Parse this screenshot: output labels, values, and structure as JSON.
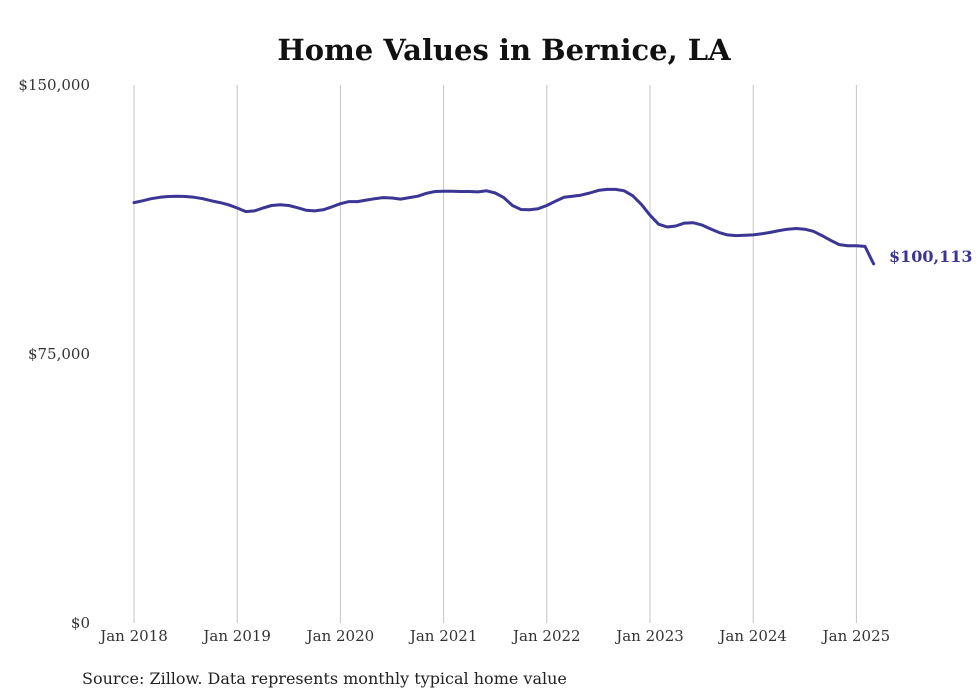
{
  "chart_data": {
    "type": "line",
    "title": "Home Values in Bernice, LA",
    "xlabel": "",
    "ylabel": "",
    "x_tick_labels": [
      "Jan 2018",
      "Jan 2019",
      "Jan 2020",
      "Jan 2021",
      "Jan 2022",
      "Jan 2023",
      "Jan 2024",
      "Jan 2025"
    ],
    "y_tick_labels": [
      "$150,000",
      "$75,000",
      "$0"
    ],
    "y_tick_values": [
      150000,
      75000,
      0
    ],
    "ylim": [
      0,
      150000
    ],
    "xlim": [
      "2018-01",
      "2025-03"
    ],
    "grid": "vertical",
    "series": [
      {
        "color": "#3b3594",
        "points": [
          [
            "2018-01",
            117200
          ],
          [
            "2018-02",
            117700
          ],
          [
            "2018-03",
            118300
          ],
          [
            "2018-04",
            118700
          ],
          [
            "2018-05",
            118900
          ],
          [
            "2018-06",
            119000
          ],
          [
            "2018-07",
            118900
          ],
          [
            "2018-08",
            118700
          ],
          [
            "2018-09",
            118300
          ],
          [
            "2018-10",
            117700
          ],
          [
            "2018-11",
            117200
          ],
          [
            "2018-12",
            116600
          ],
          [
            "2019-01",
            115700
          ],
          [
            "2019-02",
            114700
          ],
          [
            "2019-03",
            114900
          ],
          [
            "2019-04",
            115700
          ],
          [
            "2019-05",
            116400
          ],
          [
            "2019-06",
            116600
          ],
          [
            "2019-07",
            116400
          ],
          [
            "2019-08",
            115800
          ],
          [
            "2019-09",
            115100
          ],
          [
            "2019-10",
            114900
          ],
          [
            "2019-11",
            115200
          ],
          [
            "2019-12",
            116000
          ],
          [
            "2020-01",
            116900
          ],
          [
            "2020-02",
            117500
          ],
          [
            "2020-03",
            117500
          ],
          [
            "2020-04",
            117900
          ],
          [
            "2020-05",
            118300
          ],
          [
            "2020-06",
            118600
          ],
          [
            "2020-07",
            118500
          ],
          [
            "2020-08",
            118200
          ],
          [
            "2020-09",
            118600
          ],
          [
            "2020-10",
            119000
          ],
          [
            "2020-11",
            119800
          ],
          [
            "2020-12",
            120300
          ],
          [
            "2021-01",
            120400
          ],
          [
            "2021-02",
            120400
          ],
          [
            "2021-03",
            120300
          ],
          [
            "2021-04",
            120300
          ],
          [
            "2021-05",
            120200
          ],
          [
            "2021-06",
            120500
          ],
          [
            "2021-07",
            119900
          ],
          [
            "2021-08",
            118600
          ],
          [
            "2021-09",
            116400
          ],
          [
            "2021-10",
            115300
          ],
          [
            "2021-11",
            115200
          ],
          [
            "2021-12",
            115500
          ],
          [
            "2022-01",
            116400
          ],
          [
            "2022-02",
            117600
          ],
          [
            "2022-03",
            118700
          ],
          [
            "2022-04",
            119000
          ],
          [
            "2022-05",
            119300
          ],
          [
            "2022-06",
            119900
          ],
          [
            "2022-07",
            120600
          ],
          [
            "2022-08",
            120900
          ],
          [
            "2022-09",
            120900
          ],
          [
            "2022-10",
            120500
          ],
          [
            "2022-11",
            119100
          ],
          [
            "2022-12",
            116700
          ],
          [
            "2023-01",
            113700
          ],
          [
            "2023-02",
            111200
          ],
          [
            "2023-03",
            110400
          ],
          [
            "2023-04",
            110700
          ],
          [
            "2023-05",
            111500
          ],
          [
            "2023-06",
            111600
          ],
          [
            "2023-07",
            111000
          ],
          [
            "2023-08",
            109900
          ],
          [
            "2023-09",
            108900
          ],
          [
            "2023-10",
            108200
          ],
          [
            "2023-11",
            108000
          ],
          [
            "2023-12",
            108100
          ],
          [
            "2024-01",
            108200
          ],
          [
            "2024-02",
            108500
          ],
          [
            "2024-03",
            108900
          ],
          [
            "2024-04",
            109400
          ],
          [
            "2024-05",
            109800
          ],
          [
            "2024-06",
            110000
          ],
          [
            "2024-07",
            109800
          ],
          [
            "2024-08",
            109200
          ],
          [
            "2024-09",
            108000
          ],
          [
            "2024-10",
            106700
          ],
          [
            "2024-11",
            105500
          ],
          [
            "2024-12",
            105200
          ],
          [
            "2025-01",
            105200
          ],
          [
            "2025-02",
            105000
          ],
          [
            "2025-03",
            100113
          ]
        ]
      }
    ],
    "end_label": "$100,113",
    "source": "Source: Zillow. Data represents monthly typical home value"
  }
}
